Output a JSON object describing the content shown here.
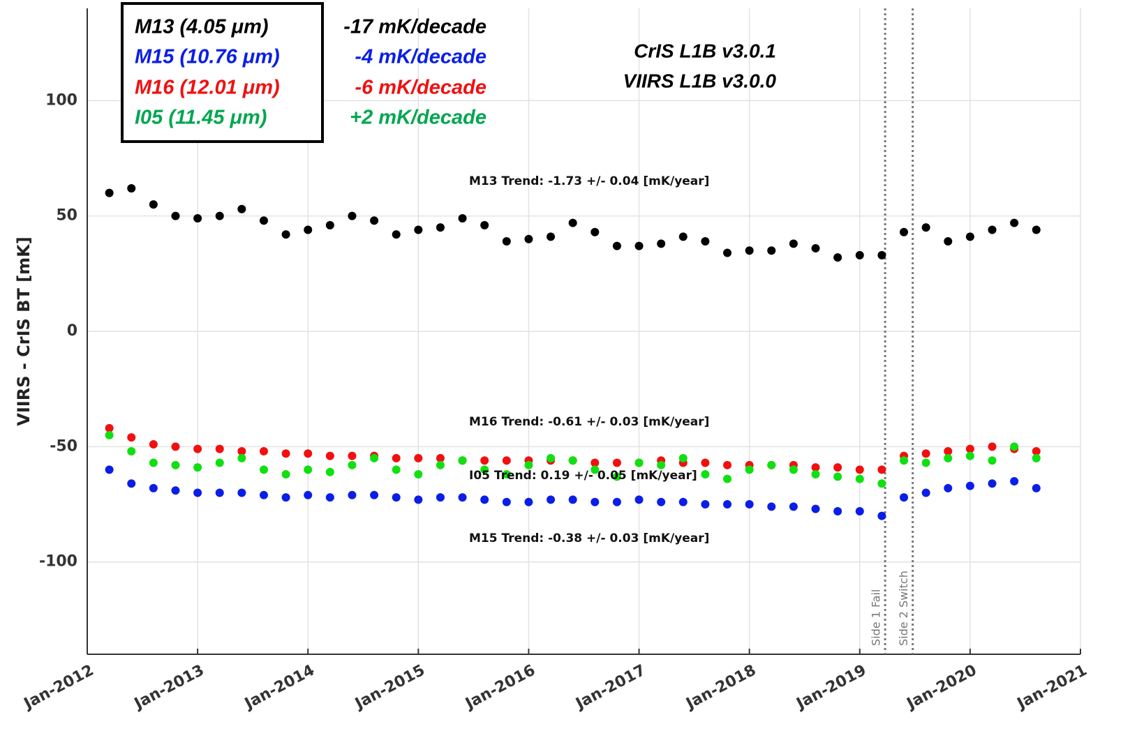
{
  "chart_data": {
    "type": "scatter",
    "y_label": "VIIRS - CrIS BT [mK]",
    "xlim": [
      2012,
      2021
    ],
    "xticks": [
      {
        "value": 2012,
        "label": "Jan-2012"
      },
      {
        "value": 2013,
        "label": "Jan-2013"
      },
      {
        "value": 2014,
        "label": "Jan-2014"
      },
      {
        "value": 2015,
        "label": "Jan-2015"
      },
      {
        "value": 2016,
        "label": "Jan-2016"
      },
      {
        "value": 2017,
        "label": "Jan-2017"
      },
      {
        "value": 2018,
        "label": "Jan-2018"
      },
      {
        "value": 2019,
        "label": "Jan-2019"
      },
      {
        "value": 2020,
        "label": "Jan-2020"
      },
      {
        "value": 2021,
        "label": "Jan-2021"
      }
    ],
    "ylim": [
      -140,
      140
    ],
    "yticks": [
      -100,
      -50,
      0,
      50,
      100
    ],
    "grid": true,
    "x": [
      2012.2,
      2012.4,
      2012.6,
      2012.8,
      2013.0,
      2013.2,
      2013.4,
      2013.6,
      2013.8,
      2014.0,
      2014.2,
      2014.4,
      2014.6,
      2014.8,
      2015.0,
      2015.2,
      2015.4,
      2015.6,
      2015.8,
      2016.0,
      2016.2,
      2016.4,
      2016.6,
      2016.8,
      2017.0,
      2017.2,
      2017.4,
      2017.6,
      2017.8,
      2018.0,
      2018.2,
      2018.4,
      2018.6,
      2018.8,
      2019.0,
      2019.2,
      2019.4,
      2019.6,
      2019.8,
      2020.0,
      2020.2,
      2020.4,
      2020.6
    ],
    "series": [
      {
        "name": "M13 (4.05 μm)",
        "color": "#000000",
        "trend": "-17 mK/decade",
        "trend_note": "M13 Trend: -1.73 +/- 0.04 [mK/year]",
        "values": [
          60,
          62,
          55,
          50,
          49,
          50,
          53,
          48,
          42,
          44,
          46,
          50,
          48,
          42,
          44,
          45,
          49,
          46,
          39,
          40,
          41,
          47,
          43,
          37,
          37,
          38,
          41,
          39,
          34,
          35,
          35,
          38,
          36,
          32,
          33,
          33,
          43,
          45,
          39,
          41,
          44,
          47,
          44
        ]
      },
      {
        "name": "M15 (10.76 μm)",
        "color": "#0a1ee6",
        "trend": "-4 mK/decade",
        "trend_note": "M15 Trend: -0.38 +/- 0.03 [mK/year]",
        "values": [
          -60,
          -66,
          -68,
          -69,
          -70,
          -70,
          -70,
          -71,
          -72,
          -71,
          -72,
          -71,
          -71,
          -72,
          -73,
          -72,
          -72,
          -73,
          -74,
          -74,
          -73,
          -73,
          -74,
          -74,
          -73,
          -74,
          -74,
          -75,
          -75,
          -75,
          -76,
          -76,
          -77,
          -78,
          -78,
          -80,
          -72,
          -70,
          -68,
          -67,
          -66,
          -65,
          -68
        ]
      },
      {
        "name": "M16 (12.01 μm)",
        "color": "#f01010",
        "trend": "-6 mK/decade",
        "trend_note": "M16 Trend: -0.61 +/- 0.03 [mK/year]",
        "values": [
          -42,
          -46,
          -49,
          -50,
          -51,
          -51,
          -52,
          -52,
          -53,
          -53,
          -54,
          -54,
          -54,
          -55,
          -55,
          -55,
          -56,
          -56,
          -56,
          -56,
          -56,
          -56,
          -57,
          -57,
          -57,
          -56,
          -57,
          -57,
          -58,
          -58,
          -58,
          -58,
          -59,
          -59,
          -60,
          -60,
          -54,
          -53,
          -52,
          -51,
          -50,
          -51,
          -52
        ]
      },
      {
        "name": "I05 (11.45 μm)",
        "color": "#10e010",
        "legend_color": "#00a650",
        "trend": "+2 mK/decade",
        "trend_note": "I05 Trend: 0.19 +/- 0.05 [mK/year]",
        "values": [
          -45,
          -52,
          -57,
          -58,
          -59,
          -57,
          -55,
          -60,
          -62,
          -60,
          -61,
          -58,
          -55,
          -60,
          -62,
          -58,
          -56,
          -60,
          -62,
          -58,
          -55,
          -56,
          -60,
          -63,
          -57,
          -58,
          -55,
          -62,
          -64,
          -60,
          -58,
          -60,
          -62,
          -63,
          -64,
          -66,
          -56,
          -57,
          -55,
          -54,
          -56,
          -50,
          -55
        ]
      }
    ],
    "versions": [
      "CrIS L1B v3.0.1",
      "VIIRS L1B v3.0.0"
    ],
    "events": [
      {
        "x": 2019.23,
        "label": "Side 1 Fail"
      },
      {
        "x": 2019.48,
        "label": "Side 2 Switch"
      }
    ]
  }
}
